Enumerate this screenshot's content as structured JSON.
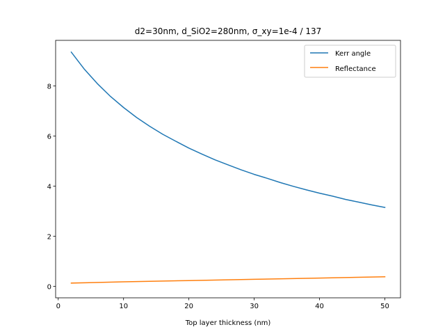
{
  "chart_data": {
    "type": "line",
    "title": "d2=30nm, d_SiO2=280nm, σ_xy=1e-4 / 137",
    "xlabel": "Top layer thickness (nm)",
    "ylabel": "",
    "xlim": [
      -0.4,
      52.4
    ],
    "ylim": [
      -0.46,
      9.82
    ],
    "xticks": [
      0,
      10,
      20,
      30,
      40,
      50
    ],
    "yticks": [
      0,
      2,
      4,
      6,
      8
    ],
    "grid": false,
    "legend_position": "top-right",
    "series": [
      {
        "name": "Kerr angle",
        "color": "#1f77b4",
        "x": [
          2,
          4,
          6,
          8,
          10,
          12,
          14,
          16,
          18,
          20,
          22,
          24,
          26,
          28,
          30,
          32,
          34,
          36,
          38,
          40,
          42,
          44,
          46,
          48,
          50
        ],
        "y": [
          9.35,
          8.67,
          8.09,
          7.58,
          7.14,
          6.74,
          6.39,
          6.07,
          5.79,
          5.52,
          5.28,
          5.05,
          4.85,
          4.65,
          4.47,
          4.31,
          4.14,
          3.99,
          3.85,
          3.72,
          3.6,
          3.47,
          3.36,
          3.25,
          3.15
        ]
      },
      {
        "name": "Reflectance",
        "color": "#ff7f0e",
        "x": [
          2,
          10,
          20,
          30,
          40,
          50
        ],
        "y": [
          0.13,
          0.18,
          0.23,
          0.28,
          0.33,
          0.38
        ]
      }
    ]
  }
}
